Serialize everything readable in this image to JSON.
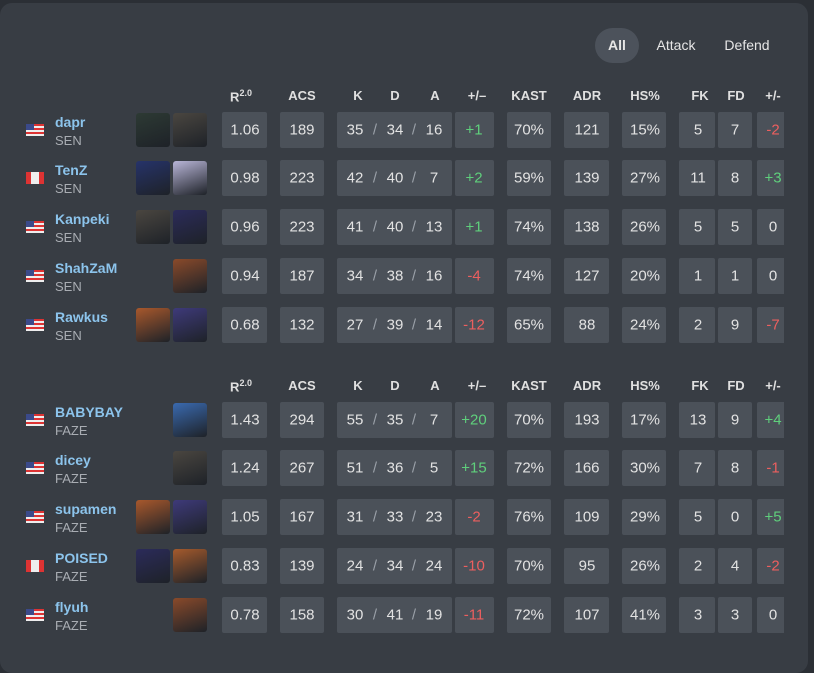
{
  "tabs": [
    "All",
    "Attack",
    "Defend"
  ],
  "separator": "/",
  "teams": [
    {
      "header": {
        "rating": "R",
        "rating_sup": "2.0",
        "cols": [
          "ACS",
          "K",
          "D",
          "A",
          "+/–",
          "KAST",
          "ADR",
          "HS%",
          "FK",
          "FD",
          "+/-"
        ]
      },
      "players": [
        {
          "name": "dapr",
          "team": "SEN",
          "stats": [
            "1.06",
            "189",
            "35",
            "34",
            "16",
            "+1",
            "70%",
            "121",
            "15%",
            "5",
            "7",
            "-2"
          ]
        },
        {
          "name": "TenZ",
          "team": "SEN",
          "stats": [
            "0.98",
            "223",
            "42",
            "40",
            "7",
            "+2",
            "59%",
            "139",
            "27%",
            "11",
            "8",
            "+3"
          ]
        },
        {
          "name": "Kanpeki",
          "team": "SEN",
          "stats": [
            "0.96",
            "223",
            "41",
            "40",
            "13",
            "+1",
            "74%",
            "138",
            "26%",
            "5",
            "5",
            "0"
          ]
        },
        {
          "name": "ShahZaM",
          "team": "SEN",
          "stats": [
            "0.94",
            "187",
            "34",
            "38",
            "16",
            "-4",
            "74%",
            "127",
            "20%",
            "1",
            "1",
            "0"
          ]
        },
        {
          "name": "Rawkus",
          "team": "SEN",
          "stats": [
            "0.68",
            "132",
            "27",
            "39",
            "14",
            "-12",
            "65%",
            "88",
            "24%",
            "2",
            "9",
            "-7"
          ]
        }
      ]
    },
    {
      "header": {
        "rating": "R",
        "rating_sup": "2.0",
        "cols": [
          "ACS",
          "K",
          "D",
          "A",
          "+/–",
          "KAST",
          "ADR",
          "HS%",
          "FK",
          "FD",
          "+/-"
        ]
      },
      "players": [
        {
          "name": "BABYBAY",
          "team": "FAZE",
          "stats": [
            "1.43",
            "294",
            "55",
            "35",
            "7",
            "+20",
            "70%",
            "193",
            "17%",
            "13",
            "9",
            "+4"
          ]
        },
        {
          "name": "dicey",
          "team": "FAZE",
          "stats": [
            "1.24",
            "267",
            "51",
            "36",
            "5",
            "+15",
            "72%",
            "166",
            "30%",
            "7",
            "8",
            "-1"
          ]
        },
        {
          "name": "supamen",
          "team": "FAZE",
          "stats": [
            "1.05",
            "167",
            "31",
            "33",
            "23",
            "-2",
            "76%",
            "109",
            "29%",
            "5",
            "0",
            "+5"
          ]
        },
        {
          "name": "POISED",
          "team": "FAZE",
          "stats": [
            "0.83",
            "139",
            "24",
            "34",
            "24",
            "-10",
            "70%",
            "95",
            "26%",
            "2",
            "4",
            "-2"
          ]
        },
        {
          "name": "flyuh",
          "team": "FAZE",
          "stats": [
            "0.78",
            "158",
            "30",
            "41",
            "19",
            "-11",
            "72%",
            "107",
            "41%",
            "3",
            "3",
            "0"
          ]
        }
      ]
    }
  ]
}
